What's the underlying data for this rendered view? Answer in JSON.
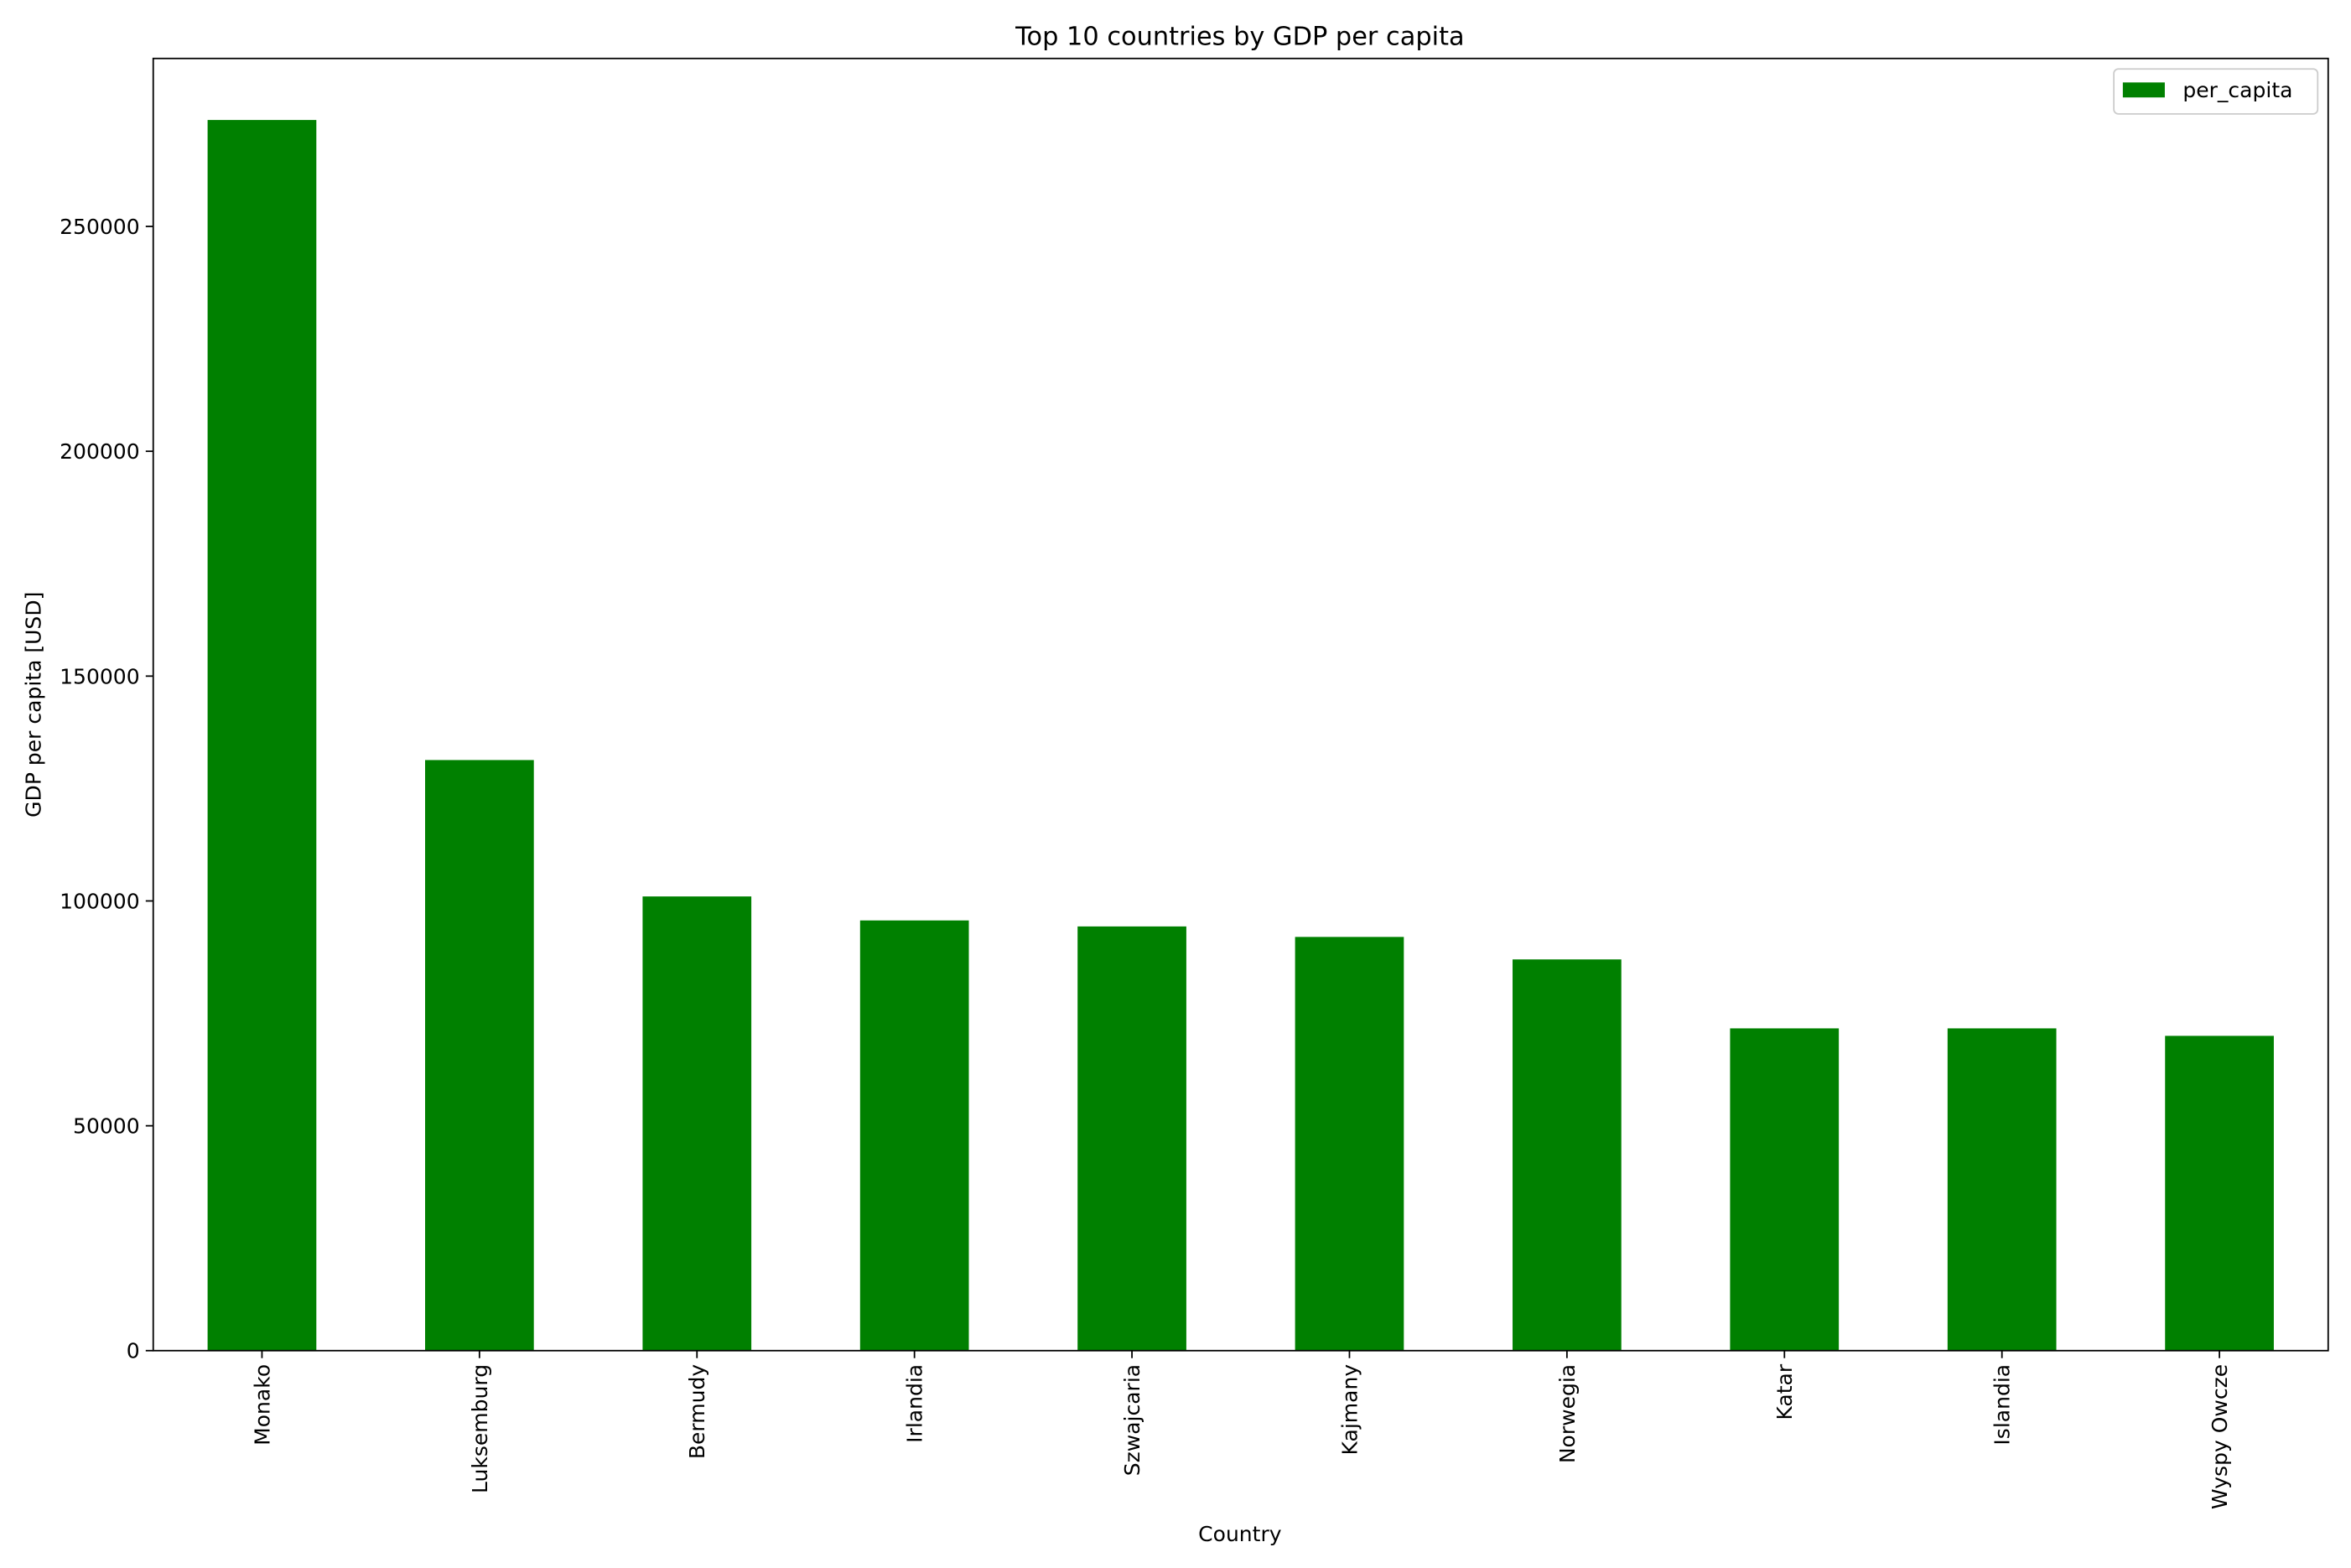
{
  "chart_data": {
    "type": "bar",
    "title": "Top 10 countries by GDP per capita",
    "x_label": "Country",
    "y_label": "GDP per capita [USD]",
    "categories": [
      "Monako",
      "Luksemburg",
      "Bermudy",
      "Irlandia",
      "Szwajcaria",
      "Kajmany",
      "Norwegia",
      "Katar",
      "Islandia",
      "Wyspy Owcze"
    ],
    "series": [
      {
        "name": "per_capita",
        "color": "#008000",
        "values": [
          273667,
          131333,
          101000,
          95667,
          94333,
          92000,
          87000,
          71667,
          71667,
          70000
        ]
      }
    ],
    "ylim": [
      0,
      287350
    ],
    "yticks": [
      0,
      50000,
      100000,
      150000,
      200000,
      250000
    ],
    "grid": false,
    "legend": "upper right"
  }
}
